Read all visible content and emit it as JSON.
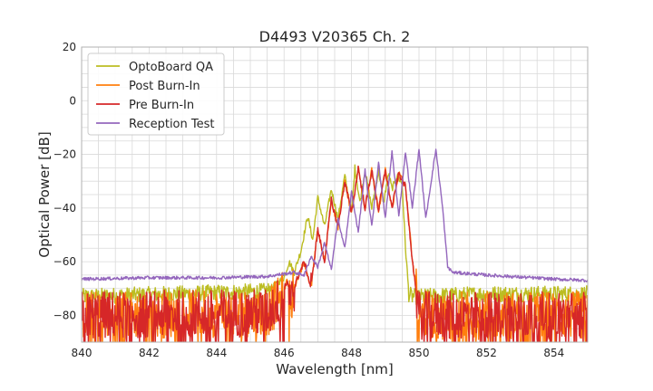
{
  "chart_data": {
    "type": "line",
    "title": "D4493 V20365 Ch. 2",
    "xlabel": "Wavelength [nm]",
    "ylabel": "Optical Power [dB]",
    "xlim": [
      840,
      855
    ],
    "ylim": [
      -90,
      20
    ],
    "xticks": [
      "840",
      "842",
      "844",
      "846",
      "848",
      "850",
      "852",
      "854"
    ],
    "yticks": [
      "20",
      "0",
      "−20",
      "−40",
      "−60",
      "−80"
    ],
    "grid": true,
    "legend_position": "top-left",
    "series": [
      {
        "name": "OptoBoard QA",
        "color": "#bcbd22",
        "x": [
          840,
          845.5,
          846.0,
          846.15,
          846.3,
          846.5,
          846.7,
          846.85,
          847.0,
          847.2,
          847.4,
          847.6,
          847.8,
          848.0,
          848.1,
          848.25,
          848.4,
          848.6,
          848.8,
          848.95,
          849.1,
          849.2,
          849.35,
          849.5,
          849.6,
          849.7,
          849.8,
          850,
          852,
          855
        ],
        "y": [
          -73,
          -71,
          -66,
          -60,
          -64,
          -56,
          -43,
          -52,
          -36,
          -47,
          -33,
          -44,
          -28,
          -42,
          -25,
          -38,
          -26,
          -40,
          -26,
          -38,
          -27,
          -33,
          -28,
          -31,
          -55,
          -72,
          -73,
          -73,
          -72,
          -72
        ],
        "noise": 3
      },
      {
        "name": "Post Burn-In",
        "color": "#ff7f0e",
        "x": [
          840,
          845.5,
          845.9,
          846.1,
          846.2,
          846.4,
          846.6,
          846.8,
          847.0,
          847.2,
          847.4,
          847.6,
          847.8,
          848.0,
          848.2,
          848.4,
          848.6,
          848.8,
          849.0,
          849.2,
          849.4,
          849.6,
          849.8,
          850.0,
          850.2,
          855
        ],
        "y": [
          -80,
          -79,
          -74,
          -67,
          -74,
          -66,
          -60,
          -70,
          -48,
          -60,
          -37,
          -47,
          -30,
          -42,
          -25,
          -40,
          -26,
          -41,
          -26,
          -40,
          -27,
          -32,
          -59,
          -80,
          -80,
          -80
        ],
        "noise": 9
      },
      {
        "name": "Pre Burn-In",
        "color": "#d62728",
        "x": [
          840,
          845.5,
          845.9,
          846.1,
          846.2,
          846.4,
          846.6,
          846.8,
          847.0,
          847.2,
          847.4,
          847.6,
          847.8,
          848.0,
          848.2,
          848.4,
          848.6,
          848.8,
          849.0,
          849.2,
          849.4,
          849.6,
          849.8,
          850.0,
          850.2,
          855
        ],
        "y": [
          -80,
          -79,
          -74,
          -67,
          -74,
          -66,
          -60,
          -70,
          -48,
          -60,
          -37,
          -47,
          -30,
          -42,
          -25,
          -40,
          -26,
          -41,
          -26,
          -40,
          -27,
          -32,
          -59,
          -80,
          -80,
          -80
        ],
        "noise": 9
      },
      {
        "name": "Reception Test",
        "color": "#9467bd",
        "x": [
          840,
          842,
          844,
          845.5,
          846.3,
          846.6,
          846.8,
          847.0,
          847.2,
          847.4,
          847.6,
          847.8,
          848.0,
          848.2,
          848.4,
          848.6,
          848.8,
          849.0,
          849.2,
          849.4,
          849.6,
          849.8,
          850.0,
          850.2,
          850.5,
          850.7,
          850.85,
          851.0,
          852,
          854,
          855
        ],
        "y": [
          -66.5,
          -66,
          -66,
          -65.5,
          -64,
          -65,
          -58,
          -62,
          -53,
          -63,
          -44,
          -55,
          -34,
          -49,
          -26,
          -47,
          -23,
          -44,
          -19,
          -43,
          -19,
          -40,
          -18,
          -44,
          -18,
          -40,
          -62,
          -64,
          -65,
          -66.5,
          -67
        ],
        "noise": 0.6
      }
    ]
  }
}
